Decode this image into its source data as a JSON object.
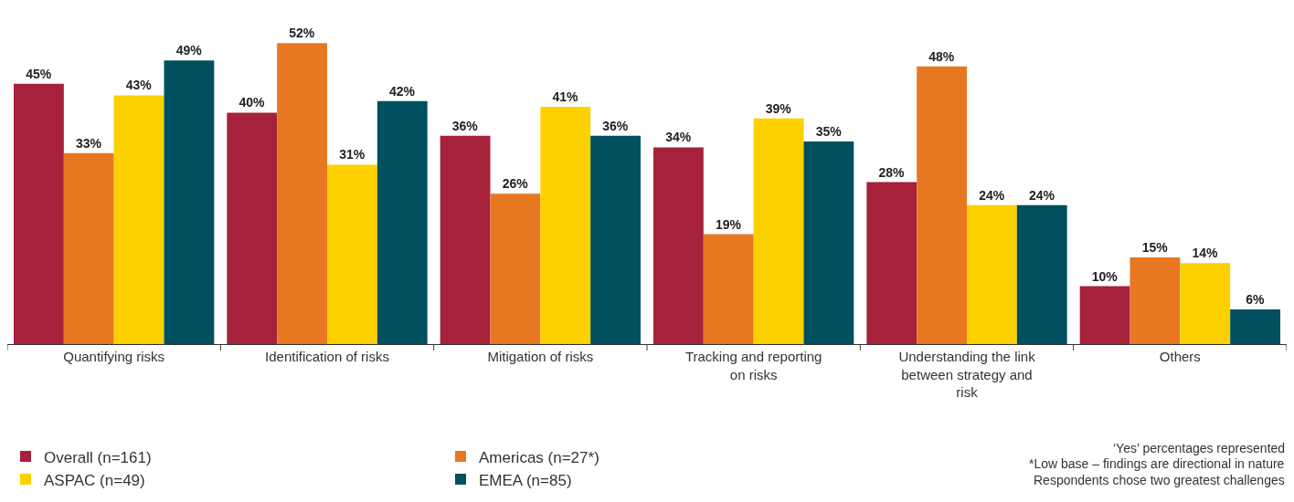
{
  "chart_data": {
    "type": "bar",
    "categories": [
      "Quantifying risks",
      "Identification of risks",
      "Mitigation of risks",
      "Tracking and reporting on risks",
      "Understanding the link between strategy and risk",
      "Others"
    ],
    "series": [
      {
        "name": "Overall (n=161)",
        "color": "#a6213a",
        "values": [
          45,
          40,
          36,
          34,
          28,
          10
        ],
        "value_labels": [
          "45%",
          "40%",
          "36%",
          "34%",
          "28%",
          "10%"
        ]
      },
      {
        "name": "Americas (n=27*)",
        "color": "#e87722",
        "values": [
          33,
          52,
          26,
          19,
          48,
          15
        ],
        "value_labels": [
          "33%",
          "52%",
          "26%",
          "19%",
          "48%",
          "15%"
        ]
      },
      {
        "name": "ASPAC (n=49)",
        "color": "#fdd000",
        "values": [
          43,
          31,
          41,
          39,
          24,
          14
        ],
        "value_labels": [
          "43%",
          "31%",
          "41%",
          "39%",
          "24%",
          "14%"
        ]
      },
      {
        "name": "EMEA (n=85)",
        "color": "#005060",
        "values": [
          49,
          42,
          36,
          35,
          24,
          6
        ],
        "value_labels": [
          "49%",
          "42%",
          "36%",
          "35%",
          "24%",
          "6%"
        ]
      }
    ],
    "legend": "bottom left",
    "annotations": [
      "‘Yes’ percentages represented",
      "*Low base – findings are directional in nature",
      "Respondents chose two greatest challenges"
    ]
  }
}
